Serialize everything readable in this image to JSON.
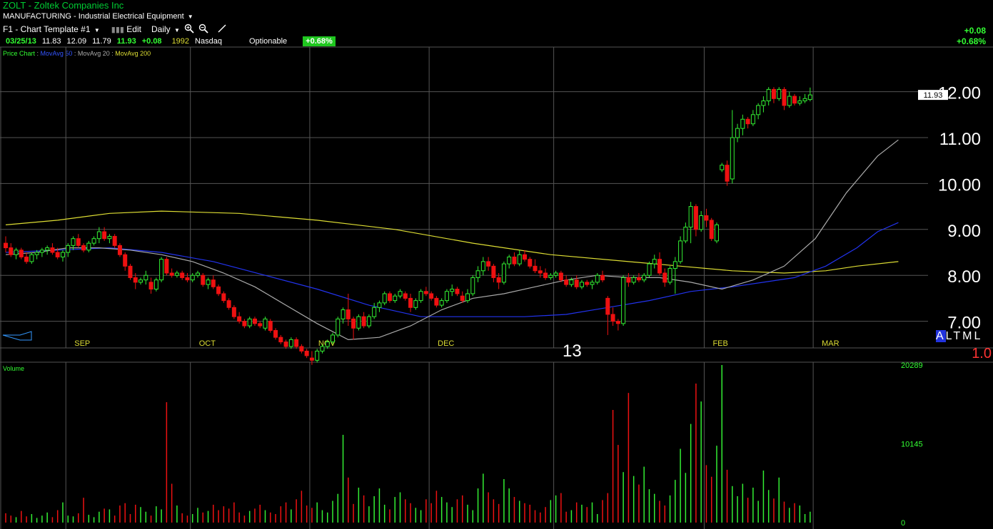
{
  "header": {
    "title": "ZOLT - Zoltek Companies Inc",
    "industry": "MANUFACTURING - Industrial Electrical Equipment",
    "template": "F1 - Chart Template #1",
    "edit_label": "Edit",
    "period": "Daily"
  },
  "quote": {
    "date": "03/25/13",
    "open": "11.83",
    "high": "12.09",
    "low": "11.79",
    "close": "11.93",
    "change": "+0.08",
    "volume": "1992",
    "exchange": "Nasdaq",
    "optionable": "Optionable",
    "change_pct": "+0.68%"
  },
  "top_right": {
    "change": "+0.08",
    "change_pct": "+0.68%"
  },
  "legend": {
    "price": "Price Chart",
    "ma50": "MovAvg 50",
    "ma20": "MovAvg 20",
    "ma200": "MovAvg 200"
  },
  "controls": {
    "mode_options": [
      "A",
      "L",
      "T",
      "M",
      "L"
    ],
    "mode_selected": "A",
    "scale": "1.0",
    "year_label": "13",
    "volume_label": "Volume"
  },
  "colors": {
    "up": "#33ee33",
    "down": "#ee1111",
    "ma20": "#aaaaaa",
    "ma50": "#2233ee",
    "ma200": "#dddd33",
    "grid": "#555555"
  },
  "icons": [
    "chevron-down-icon",
    "bar-chart-icon",
    "zoom-in-icon",
    "zoom-out-icon",
    "draw-line-icon",
    "scroll-arrow-icon"
  ],
  "chart_data": {
    "type": "candlestick",
    "ylim": [
      6.0,
      12.2
    ],
    "yticks": [
      7,
      8,
      9,
      10,
      11,
      12
    ],
    "ytick_labels": [
      "7.00",
      "8.00",
      "9.00",
      "10.00",
      "11.00",
      "12.00"
    ],
    "last_price_label": "11.93",
    "x_months": [
      "SEP",
      "OCT",
      "NOV",
      "DEC",
      "FEB",
      "MAR"
    ],
    "x_month_start_index": [
      12,
      36,
      59,
      82,
      135,
      156
    ],
    "candles": [
      [
        8.7,
        8.85,
        8.5,
        8.6
      ],
      [
        8.6,
        8.7,
        8.4,
        8.45
      ],
      [
        8.45,
        8.6,
        8.35,
        8.55
      ],
      [
        8.55,
        8.6,
        8.35,
        8.4
      ],
      [
        8.4,
        8.5,
        8.25,
        8.3
      ],
      [
        8.3,
        8.5,
        8.25,
        8.45
      ],
      [
        8.45,
        8.55,
        8.35,
        8.5
      ],
      [
        8.5,
        8.6,
        8.4,
        8.55
      ],
      [
        8.55,
        8.65,
        8.45,
        8.6
      ],
      [
        8.6,
        8.7,
        8.45,
        8.5
      ],
      [
        8.5,
        8.6,
        8.35,
        8.4
      ],
      [
        8.4,
        8.55,
        8.3,
        8.5
      ],
      [
        8.5,
        8.7,
        8.4,
        8.65
      ],
      [
        8.65,
        8.85,
        8.55,
        8.8
      ],
      [
        8.8,
        8.9,
        8.6,
        8.65
      ],
      [
        8.65,
        8.7,
        8.5,
        8.55
      ],
      [
        8.55,
        8.75,
        8.5,
        8.7
      ],
      [
        8.7,
        8.85,
        8.65,
        8.8
      ],
      [
        8.8,
        9.05,
        8.7,
        8.95
      ],
      [
        8.95,
        9.05,
        8.75,
        8.8
      ],
      [
        8.8,
        8.9,
        8.7,
        8.85
      ],
      [
        8.85,
        8.9,
        8.6,
        8.65
      ],
      [
        8.65,
        8.7,
        8.4,
        8.45
      ],
      [
        8.45,
        8.5,
        8.1,
        8.2
      ],
      [
        8.2,
        8.25,
        7.9,
        7.95
      ],
      [
        7.95,
        8.05,
        7.7,
        7.85
      ],
      [
        7.85,
        7.95,
        7.8,
        7.9
      ],
      [
        7.9,
        8.1,
        7.8,
        8.0
      ],
      [
        7.85,
        7.95,
        7.6,
        7.7
      ],
      [
        7.7,
        7.95,
        7.65,
        7.9
      ],
      [
        7.9,
        8.4,
        7.85,
        8.35
      ],
      [
        8.35,
        8.4,
        8.0,
        8.05
      ],
      [
        8.05,
        8.15,
        7.95,
        8.0
      ],
      [
        8.0,
        8.1,
        7.95,
        8.05
      ],
      [
        8.05,
        8.1,
        7.9,
        7.95
      ],
      [
        7.95,
        8.05,
        7.85,
        7.9
      ],
      [
        7.9,
        8.05,
        7.85,
        8.0
      ],
      [
        8.0,
        8.1,
        7.95,
        8.05
      ],
      [
        8.0,
        8.05,
        7.75,
        7.8
      ],
      [
        7.8,
        7.95,
        7.7,
        7.9
      ],
      [
        7.9,
        8.0,
        7.7,
        7.75
      ],
      [
        7.75,
        7.8,
        7.55,
        7.6
      ],
      [
        7.6,
        7.65,
        7.4,
        7.45
      ],
      [
        7.45,
        7.5,
        7.25,
        7.3
      ],
      [
        7.3,
        7.35,
        7.05,
        7.1
      ],
      [
        7.1,
        7.2,
        6.95,
        7.0
      ],
      [
        7.0,
        7.05,
        6.85,
        6.9
      ],
      [
        6.9,
        7.1,
        6.85,
        7.05
      ],
      [
        7.05,
        7.1,
        6.9,
        6.95
      ],
      [
        6.95,
        7.0,
        6.85,
        6.9
      ],
      [
        6.85,
        7.1,
        6.8,
        7.05
      ],
      [
        7.0,
        7.05,
        6.75,
        6.8
      ],
      [
        6.8,
        6.85,
        6.6,
        6.65
      ],
      [
        6.65,
        6.7,
        6.5,
        6.55
      ],
      [
        6.55,
        6.6,
        6.4,
        6.45
      ],
      [
        6.45,
        6.65,
        6.4,
        6.6
      ],
      [
        6.6,
        6.65,
        6.4,
        6.45
      ],
      [
        6.45,
        6.5,
        6.3,
        6.35
      ],
      [
        6.35,
        6.4,
        6.2,
        6.25
      ],
      [
        6.2,
        6.35,
        6.05,
        6.15
      ],
      [
        6.15,
        6.4,
        6.1,
        6.35
      ],
      [
        6.35,
        6.5,
        6.3,
        6.45
      ],
      [
        6.45,
        6.6,
        6.4,
        6.55
      ],
      [
        6.55,
        6.75,
        6.5,
        6.7
      ],
      [
        6.7,
        7.1,
        6.65,
        7.05
      ],
      [
        7.05,
        7.3,
        6.95,
        7.25
      ],
      [
        7.25,
        7.6,
        6.9,
        7.05
      ],
      [
        7.05,
        7.1,
        6.6,
        6.85
      ],
      [
        6.85,
        7.15,
        6.8,
        7.1
      ],
      [
        7.1,
        7.2,
        6.85,
        6.9
      ],
      [
        6.9,
        7.15,
        6.85,
        7.1
      ],
      [
        7.1,
        7.4,
        7.05,
        7.3
      ],
      [
        7.3,
        7.45,
        7.2,
        7.4
      ],
      [
        7.4,
        7.65,
        7.35,
        7.6
      ],
      [
        7.6,
        7.65,
        7.4,
        7.45
      ],
      [
        7.45,
        7.6,
        7.4,
        7.55
      ],
      [
        7.55,
        7.7,
        7.5,
        7.65
      ],
      [
        7.6,
        7.65,
        7.45,
        7.5
      ],
      [
        7.5,
        7.6,
        7.2,
        7.3
      ],
      [
        7.3,
        7.5,
        7.25,
        7.45
      ],
      [
        7.45,
        7.7,
        7.4,
        7.65
      ],
      [
        7.65,
        7.75,
        7.55,
        7.6
      ],
      [
        7.6,
        7.65,
        7.45,
        7.5
      ],
      [
        7.5,
        7.55,
        7.3,
        7.35
      ],
      [
        7.35,
        7.5,
        7.3,
        7.45
      ],
      [
        7.45,
        7.7,
        7.4,
        7.65
      ],
      [
        7.65,
        7.8,
        7.55,
        7.7
      ],
      [
        7.7,
        7.75,
        7.55,
        7.6
      ],
      [
        7.55,
        7.65,
        7.4,
        7.45
      ],
      [
        7.45,
        7.7,
        7.4,
        7.6
      ],
      [
        7.6,
        8.0,
        7.55,
        7.95
      ],
      [
        7.95,
        8.2,
        7.85,
        8.1
      ],
      [
        8.1,
        8.4,
        8.0,
        8.3
      ],
      [
        8.3,
        8.4,
        8.1,
        8.2
      ],
      [
        8.2,
        8.25,
        7.85,
        7.95
      ],
      [
        7.95,
        8.05,
        7.7,
        7.85
      ],
      [
        7.85,
        8.3,
        7.8,
        8.25
      ],
      [
        8.25,
        8.45,
        8.15,
        8.4
      ],
      [
        8.4,
        8.5,
        8.2,
        8.25
      ],
      [
        8.25,
        8.55,
        8.2,
        8.45
      ],
      [
        8.45,
        8.55,
        8.3,
        8.35
      ],
      [
        8.35,
        8.4,
        8.15,
        8.2
      ],
      [
        8.2,
        8.35,
        8.05,
        8.1
      ],
      [
        8.1,
        8.2,
        7.95,
        8.05
      ],
      [
        8.05,
        8.15,
        7.9,
        7.95
      ],
      [
        7.95,
        8.05,
        7.9,
        8.0
      ],
      [
        8.0,
        8.1,
        7.95,
        8.05
      ],
      [
        8.05,
        8.1,
        7.85,
        7.9
      ],
      [
        7.9,
        8.0,
        7.75,
        7.8
      ],
      [
        7.8,
        7.95,
        7.75,
        7.9
      ],
      [
        7.9,
        8.0,
        7.7,
        7.75
      ],
      [
        7.75,
        7.9,
        7.7,
        7.85
      ],
      [
        7.85,
        7.9,
        7.75,
        7.8
      ],
      [
        7.8,
        7.9,
        7.7,
        7.85
      ],
      [
        7.85,
        8.05,
        7.8,
        8.0
      ],
      [
        8.0,
        8.1,
        7.85,
        7.9
      ],
      [
        7.5,
        7.55,
        6.7,
        7.15
      ],
      [
        7.15,
        7.3,
        6.9,
        7.0
      ],
      [
        7.0,
        7.05,
        6.8,
        6.95
      ],
      [
        6.95,
        8.0,
        6.9,
        7.95
      ],
      [
        7.95,
        8.05,
        7.75,
        7.85
      ],
      [
        7.85,
        8.0,
        7.8,
        7.95
      ],
      [
        7.95,
        8.05,
        7.85,
        7.9
      ],
      [
        7.9,
        8.05,
        7.85,
        8.0
      ],
      [
        8.0,
        8.3,
        7.95,
        8.25
      ],
      [
        8.25,
        8.45,
        8.15,
        8.35
      ],
      [
        8.35,
        8.5,
        8.0,
        8.05
      ],
      [
        8.05,
        8.15,
        7.75,
        7.85
      ],
      [
        7.85,
        8.2,
        7.8,
        8.15
      ],
      [
        8.15,
        8.4,
        7.6,
        8.3
      ],
      [
        8.3,
        8.85,
        8.25,
        8.75
      ],
      [
        8.75,
        9.15,
        8.7,
        9.05
      ],
      [
        9.05,
        9.6,
        8.7,
        9.5
      ],
      [
        9.5,
        9.55,
        8.85,
        9.0
      ],
      [
        9.0,
        9.4,
        8.95,
        9.3
      ],
      [
        9.3,
        9.45,
        9.05,
        9.2
      ],
      [
        9.2,
        9.25,
        8.75,
        8.8
      ],
      [
        8.75,
        9.15,
        8.7,
        9.1
      ],
      [
        10.3,
        10.45,
        10.25,
        10.4
      ],
      [
        10.4,
        10.5,
        9.95,
        10.05
      ],
      [
        10.1,
        11.6,
        10.0,
        11.0
      ],
      [
        11.0,
        11.3,
        10.9,
        11.2
      ],
      [
        11.2,
        11.5,
        11.05,
        11.4
      ],
      [
        11.4,
        11.45,
        11.2,
        11.3
      ],
      [
        11.3,
        11.6,
        11.25,
        11.5
      ],
      [
        11.5,
        11.75,
        11.4,
        11.7
      ],
      [
        11.7,
        11.9,
        11.55,
        11.8
      ],
      [
        11.8,
        12.1,
        11.7,
        12.05
      ],
      [
        12.05,
        12.1,
        11.75,
        11.85
      ],
      [
        11.85,
        12.1,
        11.8,
        12.05
      ],
      [
        12.05,
        12.1,
        11.6,
        11.7
      ],
      [
        11.7,
        12.0,
        11.65,
        11.9
      ],
      [
        11.9,
        11.95,
        11.7,
        11.75
      ],
      [
        11.75,
        11.9,
        11.7,
        11.8
      ],
      [
        11.8,
        11.95,
        11.75,
        11.85
      ],
      [
        11.83,
        12.09,
        11.79,
        11.93
      ]
    ],
    "ma20": [
      [
        0,
        8.45
      ],
      [
        6,
        8.5
      ],
      [
        12,
        8.6
      ],
      [
        18,
        8.6
      ],
      [
        24,
        8.55
      ],
      [
        30,
        8.45
      ],
      [
        36,
        8.3
      ],
      [
        42,
        8.05
      ],
      [
        48,
        7.75
      ],
      [
        54,
        7.35
      ],
      [
        60,
        6.95
      ],
      [
        66,
        6.6
      ],
      [
        72,
        6.65
      ],
      [
        78,
        6.9
      ],
      [
        84,
        7.25
      ],
      [
        90,
        7.5
      ],
      [
        96,
        7.6
      ],
      [
        102,
        7.75
      ],
      [
        108,
        7.9
      ],
      [
        114,
        8.0
      ],
      [
        120,
        7.95
      ],
      [
        126,
        7.95
      ],
      [
        132,
        7.85
      ],
      [
        138,
        7.7
      ],
      [
        144,
        7.9
      ],
      [
        150,
        8.2
      ],
      [
        156,
        8.8
      ],
      [
        162,
        9.8
      ],
      [
        168,
        10.6
      ],
      [
        172,
        10.95
      ]
    ],
    "ma50": [
      [
        0,
        8.5
      ],
      [
        10,
        8.55
      ],
      [
        20,
        8.6
      ],
      [
        30,
        8.5
      ],
      [
        40,
        8.3
      ],
      [
        50,
        8.0
      ],
      [
        60,
        7.7
      ],
      [
        70,
        7.35
      ],
      [
        80,
        7.1
      ],
      [
        90,
        7.1
      ],
      [
        100,
        7.1
      ],
      [
        108,
        7.15
      ],
      [
        116,
        7.3
      ],
      [
        124,
        7.45
      ],
      [
        132,
        7.65
      ],
      [
        140,
        7.75
      ],
      [
        146,
        7.85
      ],
      [
        152,
        7.95
      ],
      [
        158,
        8.2
      ],
      [
        164,
        8.6
      ],
      [
        168,
        8.95
      ],
      [
        172,
        9.15
      ]
    ],
    "ma200": [
      [
        0,
        9.1
      ],
      [
        10,
        9.2
      ],
      [
        20,
        9.35
      ],
      [
        30,
        9.4
      ],
      [
        45,
        9.35
      ],
      [
        60,
        9.2
      ],
      [
        75,
        9.0
      ],
      [
        90,
        8.7
      ],
      [
        105,
        8.45
      ],
      [
        120,
        8.3
      ],
      [
        130,
        8.2
      ],
      [
        140,
        8.1
      ],
      [
        150,
        8.05
      ],
      [
        158,
        8.1
      ],
      [
        164,
        8.2
      ],
      [
        172,
        8.3
      ]
    ],
    "volume": {
      "ylim": [
        0,
        20289
      ],
      "ytick_labels": [
        "0",
        "10145",
        "20289"
      ],
      "values": [
        1200,
        900,
        700,
        1500,
        800,
        1100,
        600,
        900,
        1300,
        700,
        1600,
        2600,
        900,
        800,
        1200,
        3200,
        1000,
        700,
        1400,
        1800,
        1700,
        900,
        2200,
        2500,
        1100,
        2300,
        2000,
        1400,
        900,
        2100,
        1700,
        15500,
        5000,
        2200,
        1200,
        900,
        1100,
        1900,
        1300,
        1500,
        2300,
        1600,
        2100,
        1800,
        2600,
        1300,
        900,
        1500,
        1800,
        2300,
        1600,
        1300,
        1100,
        2100,
        2600,
        1700,
        3000,
        4100,
        2200,
        1900,
        2600,
        1600,
        1300,
        2800,
        3700,
        11300,
        5800,
        2400,
        4500,
        3500,
        2100,
        3400,
        4400,
        2300,
        1700,
        3300,
        3900,
        3000,
        2500,
        1900,
        1600,
        3000,
        2500,
        4100,
        3300,
        2600,
        2000,
        3000,
        3500,
        2300,
        1600,
        4400,
        6300,
        3900,
        3000,
        2400,
        5600,
        4400,
        3300,
        2800,
        2500,
        2300,
        1600,
        1300,
        2000,
        2900,
        3500,
        3800,
        1400,
        1600,
        2600,
        2300,
        2000,
        2600,
        1100,
        2900,
        3800,
        14500,
        10000,
        6500,
        16700,
        6000,
        4900,
        7200,
        4300,
        3700,
        2800,
        2200,
        3500,
        5500,
        9500,
        6400,
        12700,
        17900,
        15600,
        7400,
        5900,
        9900,
        20289,
        6800,
        4700,
        3400,
        5000,
        3200,
        4500,
        2800,
        6700,
        4200,
        3100,
        5800,
        2700,
        1900,
        2500,
        2200,
        1100,
        1400
      ]
    }
  }
}
